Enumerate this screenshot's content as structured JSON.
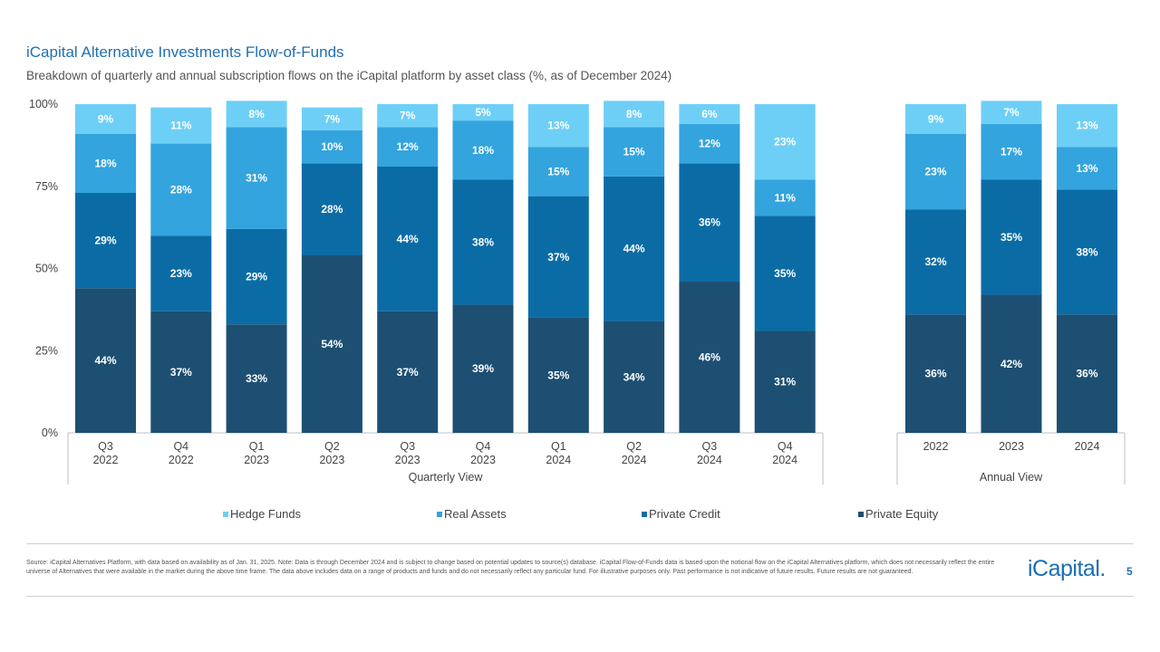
{
  "header": {
    "title": "iCapital Alternative Investments Flow-of-Funds",
    "subtitle": "Breakdown of quarterly and annual subscription flows on the iCapital platform by asset class (%, as of December 2024)"
  },
  "chart_data": {
    "type": "bar",
    "stacked": true,
    "ylim": [
      0,
      100
    ],
    "yticks": [
      "0%",
      "25%",
      "50%",
      "75%",
      "100%"
    ],
    "series_colors": {
      "Hedge Funds": "#6ecff6",
      "Real Assets": "#33a4dd",
      "Private Credit": "#0b6ca5",
      "Private Equity": "#1d4f72"
    },
    "label_colors": {
      "Hedge Funds": "#ffffff",
      "Real Assets": "#ffffff",
      "Private Credit": "#ffffff",
      "Private Equity": "#ffffff"
    },
    "legend": [
      "Hedge Funds",
      "Real Assets",
      "Private Credit",
      "Private Equity"
    ],
    "groups": [
      {
        "name": "Quarterly View",
        "categories": [
          [
            "Q3",
            "2022"
          ],
          [
            "Q4",
            "2022"
          ],
          [
            "Q1",
            "2023"
          ],
          [
            "Q2",
            "2023"
          ],
          [
            "Q3",
            "2023"
          ],
          [
            "Q4",
            "2023"
          ],
          [
            "Q1",
            "2024"
          ],
          [
            "Q2",
            "2024"
          ],
          [
            "Q3",
            "2024"
          ],
          [
            "Q4",
            "2024"
          ]
        ],
        "series": [
          {
            "name": "Private Equity",
            "values": [
              44,
              37,
              33,
              54,
              37,
              39,
              35,
              34,
              46,
              31
            ]
          },
          {
            "name": "Private Credit",
            "values": [
              29,
              23,
              29,
              28,
              44,
              38,
              37,
              44,
              36,
              35
            ]
          },
          {
            "name": "Real Assets",
            "values": [
              18,
              28,
              31,
              10,
              12,
              18,
              15,
              15,
              12,
              11
            ]
          },
          {
            "name": "Hedge Funds",
            "values": [
              9,
              11,
              8,
              7,
              7,
              5,
              13,
              8,
              6,
              23
            ]
          }
        ]
      },
      {
        "name": "Annual View",
        "categories": [
          [
            "2022"
          ],
          [
            "2023"
          ],
          [
            "2024"
          ]
        ],
        "series": [
          {
            "name": "Private Equity",
            "values": [
              36,
              42,
              36
            ]
          },
          {
            "name": "Private Credit",
            "values": [
              32,
              35,
              38
            ]
          },
          {
            "name": "Real Assets",
            "values": [
              23,
              17,
              13
            ]
          },
          {
            "name": "Hedge Funds",
            "values": [
              9,
              7,
              13
            ]
          }
        ]
      }
    ]
  },
  "footer": {
    "source": "Source: iCapital Alternatives Platform, with data based on availability as of Jan. 31, 2025. Note: Data is through December 2024 and is subject to change based on potential updates to source(s) database. iCapital Flow-of-Funds data is based upon the notional flow on the iCapital Alternatives platform, which does not necessarily reflect the entire universe of Alternatives that were available in the market during the above time frame. The data above includes data on a range of products and funds and do not necessarily reflect any particular fund. For illustrative purposes only. Past performance is not indicative of future results. Future results are not guaranteed.",
    "logo": "iCapital.",
    "page_number": "5"
  }
}
